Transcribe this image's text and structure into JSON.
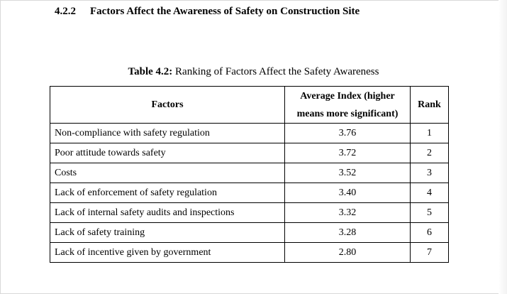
{
  "section": {
    "number": "4.2.2",
    "title": "Factors Affect the Awareness of Safety on Construction Site"
  },
  "caption": {
    "label": "Table 4.2:",
    "text": " Ranking of Factors Affect the Safety Awareness"
  },
  "table": {
    "headers": {
      "factor": "Factors",
      "index": "Average Index (higher means more significant)",
      "rank": "Rank"
    },
    "rows": [
      {
        "factor": "Non-compliance with safety regulation",
        "index": "3.76",
        "rank": "1"
      },
      {
        "factor": "Poor attitude towards safety",
        "index": "3.72",
        "rank": "2"
      },
      {
        "factor": "Costs",
        "index": "3.52",
        "rank": "3"
      },
      {
        "factor": "Lack of enforcement of safety regulation",
        "index": "3.40",
        "rank": "4"
      },
      {
        "factor": "Lack of internal safety audits and inspections",
        "index": "3.32",
        "rank": "5"
      },
      {
        "factor": "Lack of safety training",
        "index": "3.28",
        "rank": "6"
      },
      {
        "factor": "Lack of incentive given by government",
        "index": "2.80",
        "rank": "7"
      }
    ]
  }
}
